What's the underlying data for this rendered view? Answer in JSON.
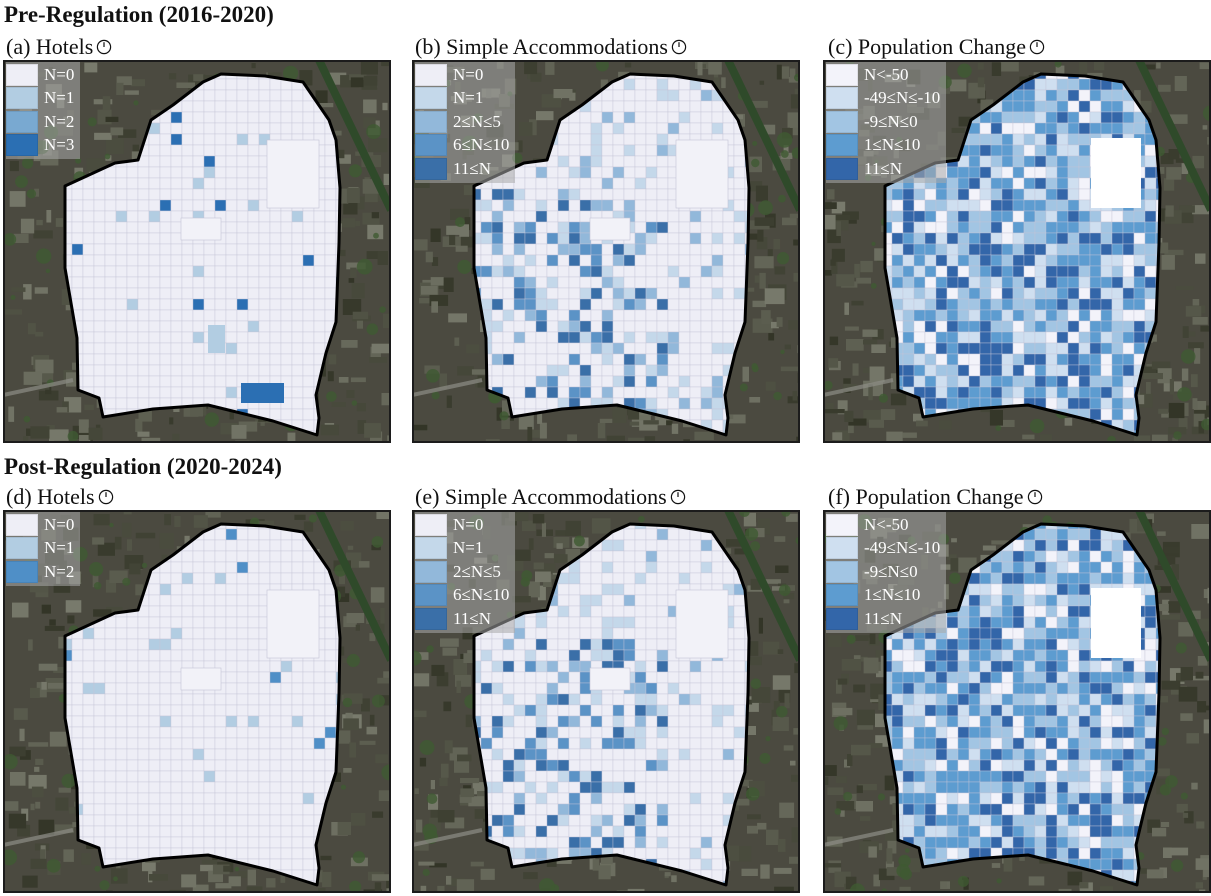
{
  "sections": {
    "pre": "Pre-Regulation (2016-2020)",
    "post": "Post-Regulation (2020-2024)"
  },
  "panels": [
    {
      "key": "a",
      "title": "(a) Hotels",
      "legend": [
        {
          "label": "N=0",
          "color": "#eeeef6"
        },
        {
          "label": "N=1",
          "color": "#b2cde2"
        },
        {
          "label": "N=2",
          "color": "#79a9d1"
        },
        {
          "label": "N=3",
          "color": "#2b6fb3"
        }
      ]
    },
    {
      "key": "b",
      "title": "(b) Simple Accommodations",
      "legend": [
        {
          "label": "N=0",
          "color": "#eeeef6"
        },
        {
          "label": "N=1",
          "color": "#c4d8ea"
        },
        {
          "label": "2≤N≤5",
          "color": "#92b8da"
        },
        {
          "label": "6≤N≤10",
          "color": "#5b93c6"
        },
        {
          "label": "11≤N",
          "color": "#3a6fa8"
        }
      ]
    },
    {
      "key": "c",
      "title": "(c) Population Change",
      "legend": [
        {
          "label": "N<-50",
          "color": "#f3f3fa"
        },
        {
          "label": "-49≤N≤-10",
          "color": "#cfdff0"
        },
        {
          "label": "-9≤N≤0",
          "color": "#a2c5e3"
        },
        {
          "label": "1≤N≤10",
          "color": "#5d9cd0"
        },
        {
          "label": "11≤N",
          "color": "#3366a9"
        }
      ]
    },
    {
      "key": "d",
      "title": "(d) Hotels",
      "legend": [
        {
          "label": "N=0",
          "color": "#eeeef6"
        },
        {
          "label": "N=1",
          "color": "#b2cde2"
        },
        {
          "label": "N=2",
          "color": "#4f8fc7"
        }
      ]
    },
    {
      "key": "e",
      "title": "(e) Simple Accommodations",
      "legend": [
        {
          "label": "N=0",
          "color": "#eeeef6"
        },
        {
          "label": "N=1",
          "color": "#c4d8ea"
        },
        {
          "label": "2≤N≤5",
          "color": "#92b8da"
        },
        {
          "label": "6≤N≤10",
          "color": "#5b93c6"
        },
        {
          "label": "11≤N",
          "color": "#3a6fa8"
        }
      ]
    },
    {
      "key": "f",
      "title": "(f) Population Change",
      "legend": [
        {
          "label": "N<-50",
          "color": "#f3f3fa"
        },
        {
          "label": "-49≤N≤-10",
          "color": "#cfdff0"
        },
        {
          "label": "-9≤N≤0",
          "color": "#a2c5e3"
        },
        {
          "label": "1≤N≤10",
          "color": "#5d9cd0"
        },
        {
          "label": "11≤N",
          "color": "#3366a9"
        }
      ]
    }
  ],
  "icons": {
    "panel_title": "clock-icon"
  },
  "colors": {
    "satellite_bg": "#4b4a40",
    "boundary": "#000000",
    "frame": "#1c1c1c"
  }
}
